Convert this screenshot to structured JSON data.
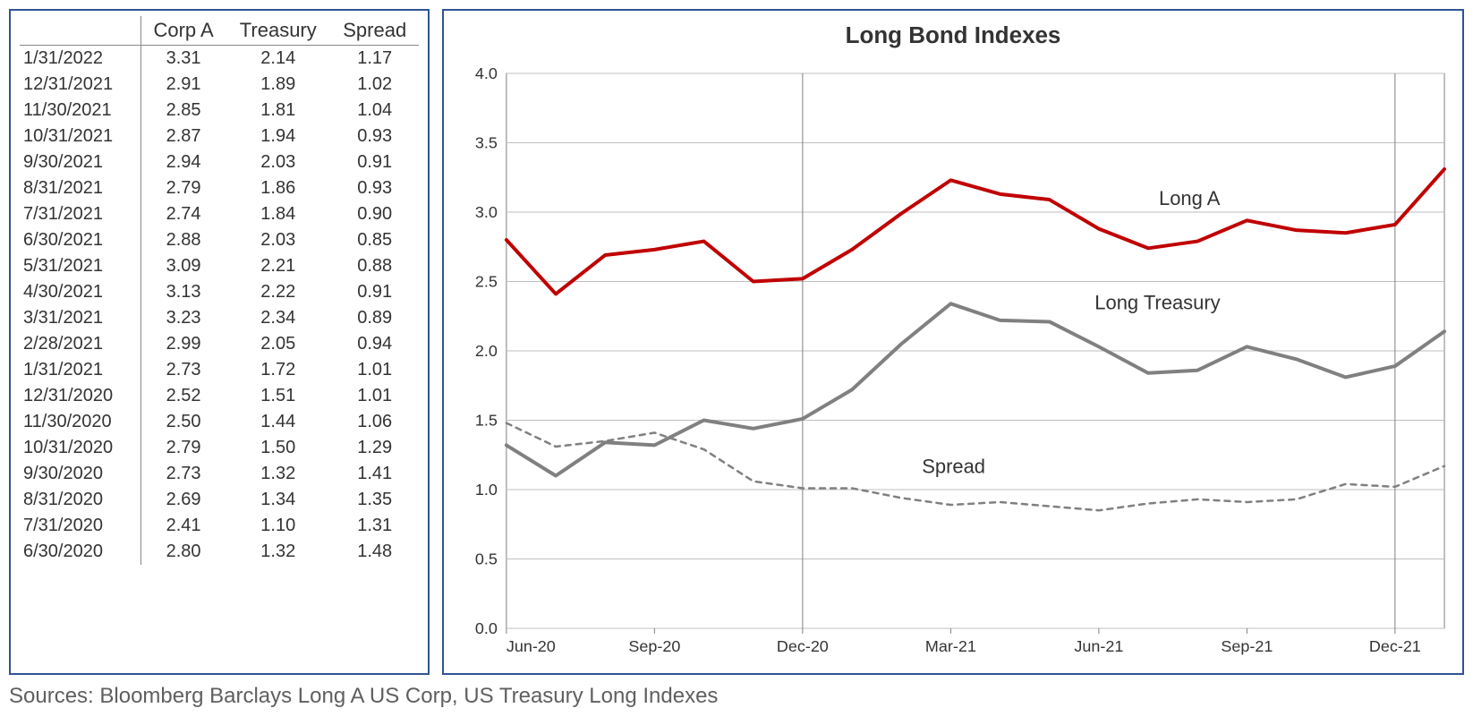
{
  "sources_text": "Sources: Bloomberg Barclays Long A US Corp, US Treasury Long Indexes",
  "table": {
    "columns": [
      "",
      "Corp A",
      "Treasury",
      "Spread"
    ],
    "rows": [
      [
        "1/31/2022",
        "3.31",
        "2.14",
        "1.17"
      ],
      [
        "12/31/2021",
        "2.91",
        "1.89",
        "1.02"
      ],
      [
        "11/30/2021",
        "2.85",
        "1.81",
        "1.04"
      ],
      [
        "10/31/2021",
        "2.87",
        "1.94",
        "0.93"
      ],
      [
        "9/30/2021",
        "2.94",
        "2.03",
        "0.91"
      ],
      [
        "8/31/2021",
        "2.79",
        "1.86",
        "0.93"
      ],
      [
        "7/31/2021",
        "2.74",
        "1.84",
        "0.90"
      ],
      [
        "6/30/2021",
        "2.88",
        "2.03",
        "0.85"
      ],
      [
        "5/31/2021",
        "3.09",
        "2.21",
        "0.88"
      ],
      [
        "4/30/2021",
        "3.13",
        "2.22",
        "0.91"
      ],
      [
        "3/31/2021",
        "3.23",
        "2.34",
        "0.89"
      ],
      [
        "2/28/2021",
        "2.99",
        "2.05",
        "0.94"
      ],
      [
        "1/31/2021",
        "2.73",
        "1.72",
        "1.01"
      ],
      [
        "12/31/2020",
        "2.52",
        "1.51",
        "1.01"
      ],
      [
        "11/30/2020",
        "2.50",
        "1.44",
        "1.06"
      ],
      [
        "10/31/2020",
        "2.79",
        "1.50",
        "1.29"
      ],
      [
        "9/30/2020",
        "2.73",
        "1.32",
        "1.41"
      ],
      [
        "8/31/2020",
        "2.69",
        "1.34",
        "1.35"
      ],
      [
        "7/31/2020",
        "2.41",
        "1.10",
        "1.31"
      ],
      [
        "6/30/2020",
        "2.80",
        "1.32",
        "1.48"
      ]
    ],
    "date_col_align": "left",
    "header_fontsize": 22,
    "cell_fontsize": 20,
    "border_color": "#888888"
  },
  "chart": {
    "type": "line",
    "title": "Long Bond Indexes",
    "title_fontsize": 26,
    "title_weight": "bold",
    "background_color": "#ffffff",
    "plot_border_color": "#808080",
    "plot_border_width": 1,
    "grid_color": "#bfbfbf",
    "grid_width": 1,
    "axis_label_fontsize": 18,
    "ylim": [
      0.0,
      4.0
    ],
    "ytick_step": 0.5,
    "yticks": [
      "0.0",
      "0.5",
      "1.0",
      "1.5",
      "2.0",
      "2.5",
      "3.0",
      "3.5",
      "4.0"
    ],
    "x_categories": [
      "Jun-20",
      "Jul-20",
      "Aug-20",
      "Sep-20",
      "Oct-20",
      "Nov-20",
      "Dec-20",
      "Jan-21",
      "Feb-21",
      "Mar-21",
      "Apr-21",
      "May-21",
      "Jun-21",
      "Jul-21",
      "Aug-21",
      "Sep-21",
      "Oct-21",
      "Nov-21",
      "Dec-21",
      "Jan-22"
    ],
    "x_tick_labels": [
      "Jun-20",
      "Sep-20",
      "Dec-20",
      "Mar-21",
      "Jun-21",
      "Sep-21",
      "Dec-21"
    ],
    "x_tick_indices": [
      0,
      3,
      6,
      9,
      12,
      15,
      18
    ],
    "vertical_ref_lines": {
      "indices": [
        6,
        18
      ],
      "color": "#808080",
      "width": 1
    },
    "series": [
      {
        "name": "Long A",
        "label": "Long A",
        "color": "#c00000",
        "width": 4,
        "dash": "none",
        "label_xy_index": 13,
        "label_y": 3.05,
        "values": [
          2.8,
          2.41,
          2.69,
          2.73,
          2.79,
          2.5,
          2.52,
          2.73,
          2.99,
          3.23,
          3.13,
          3.09,
          2.88,
          2.74,
          2.79,
          2.94,
          2.87,
          2.85,
          2.91,
          3.31
        ]
      },
      {
        "name": "Long Treasury",
        "label": "Long Treasury",
        "color": "#808080",
        "width": 4,
        "dash": "none",
        "label_xy_index": 11.7,
        "label_y": 2.3,
        "values": [
          1.32,
          1.1,
          1.34,
          1.32,
          1.5,
          1.44,
          1.51,
          1.72,
          2.05,
          2.34,
          2.22,
          2.21,
          2.03,
          1.84,
          1.86,
          2.03,
          1.94,
          1.81,
          1.89,
          2.14
        ]
      },
      {
        "name": "Spread",
        "label": "Spread",
        "color": "#808080",
        "width": 2.5,
        "dash": "6,6",
        "label_xy_index": 8.2,
        "label_y": 1.12,
        "values": [
          1.48,
          1.31,
          1.35,
          1.41,
          1.29,
          1.06,
          1.01,
          1.01,
          0.94,
          0.89,
          0.91,
          0.88,
          0.85,
          0.9,
          0.93,
          0.91,
          0.93,
          1.04,
          1.02,
          1.17
        ]
      }
    ],
    "series_label_fontsize": 22
  }
}
